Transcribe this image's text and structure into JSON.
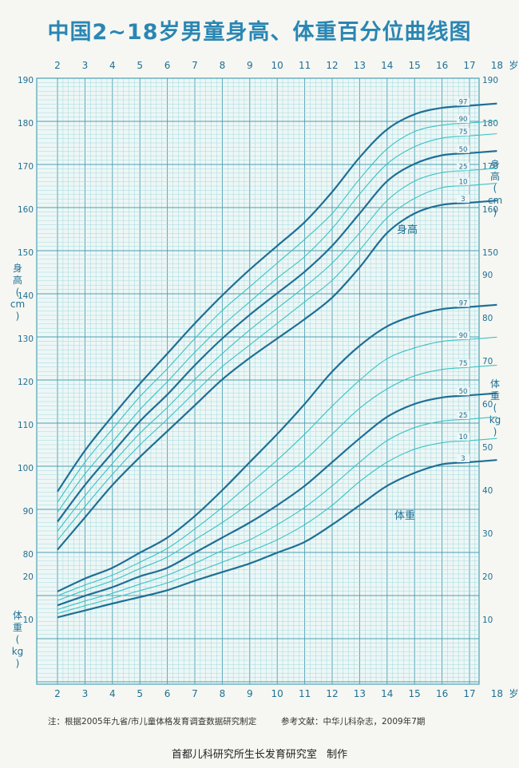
{
  "title": "中国2~18岁男童身高、体重百分位曲线图",
  "footnote_left": "注：根据2005年九省/市儿童体格发育调查数据研究制定",
  "footnote_right": "参考文献：中华儿科杂志，2009年7期",
  "credit_org": "首都儿科研究所生长发育研究室",
  "credit_action": "制作",
  "colors": {
    "background": "#f6f7f2",
    "grid_minor": "#9fd8de",
    "grid_major": "#4a9fb3",
    "curve_dark": "#1f6f95",
    "curve_light": "#3cc2c4",
    "text": "#1f6f95"
  },
  "chart_data": {
    "type": "line",
    "x_axis": {
      "ticks": [
        "2",
        "3",
        "4",
        "5",
        "6",
        "7",
        "8",
        "9",
        "10",
        "11",
        "12",
        "13",
        "14",
        "15",
        "16",
        "17",
        "18"
      ],
      "unit": "岁",
      "range": [
        2,
        18
      ]
    },
    "height_axis": {
      "label": [
        "身",
        "高",
        "(",
        "cm",
        ")"
      ],
      "ticks_left": [
        80,
        90,
        100,
        110,
        120,
        130,
        140,
        150,
        160,
        170,
        180,
        190
      ],
      "ticks_right": [
        150,
        160,
        170,
        180,
        190
      ],
      "range": [
        75,
        190
      ]
    },
    "weight_axis": {
      "label": [
        "体",
        "重",
        "(",
        "kg",
        ")"
      ],
      "ticks_left": [
        10,
        20
      ],
      "ticks_right": [
        10,
        20,
        30,
        40,
        50,
        60,
        70,
        80,
        90
      ],
      "range": [
        0,
        95
      ]
    },
    "height_series_label": "身高",
    "weight_series_label": "体重",
    "x": [
      2,
      3,
      4,
      5,
      6,
      7,
      8,
      9,
      10,
      11,
      12,
      13,
      14,
      15,
      16,
      17,
      18
    ],
    "height_series": [
      {
        "name": "97",
        "style": "dark",
        "values": [
          94.5,
          104.0,
          112.0,
          119.5,
          126.5,
          133.5,
          140.0,
          146.0,
          151.5,
          157.0,
          164.0,
          172.0,
          178.5,
          182.0,
          183.5,
          184.0,
          184.5
        ]
      },
      {
        "name": "90",
        "style": "light",
        "values": [
          92.0,
          101.3,
          109.0,
          116.5,
          123.0,
          130.0,
          136.5,
          142.0,
          147.5,
          153.0,
          159.0,
          167.0,
          174.0,
          178.0,
          179.5,
          180.0,
          180.5
        ]
      },
      {
        "name": "75",
        "style": "light",
        "values": [
          89.7,
          98.6,
          106.0,
          113.5,
          120.0,
          126.8,
          133.0,
          138.5,
          144.0,
          149.0,
          155.5,
          163.5,
          170.5,
          174.5,
          176.5,
          177.0,
          177.5
        ]
      },
      {
        "name": "50",
        "style": "dark",
        "values": [
          87.5,
          96.0,
          103.5,
          110.8,
          117.0,
          123.8,
          130.0,
          135.5,
          140.5,
          145.5,
          151.5,
          159.0,
          166.5,
          170.5,
          172.5,
          173.0,
          173.5
        ]
      },
      {
        "name": "25",
        "style": "light",
        "values": [
          85.3,
          93.5,
          101.0,
          108.0,
          114.0,
          120.5,
          126.5,
          132.0,
          137.0,
          142.0,
          147.5,
          154.5,
          162.0,
          166.5,
          168.5,
          169.0,
          169.5
        ]
      },
      {
        "name": "10",
        "style": "light",
        "values": [
          83.2,
          91.0,
          98.5,
          105.3,
          111.3,
          117.5,
          123.5,
          128.5,
          133.5,
          138.5,
          143.5,
          150.5,
          158.0,
          162.5,
          165.0,
          165.5,
          166.0
        ]
      },
      {
        "name": "3",
        "style": "dark",
        "values": [
          81.0,
          88.5,
          96.0,
          102.5,
          108.5,
          114.5,
          120.5,
          125.5,
          130.0,
          134.5,
          139.5,
          146.5,
          154.5,
          159.0,
          161.0,
          161.5,
          162.0
        ]
      }
    ],
    "weight_series": [
      {
        "name": "97",
        "style": "dark",
        "values": [
          16.5,
          19.5,
          22.0,
          25.5,
          29.0,
          34.0,
          40.0,
          46.5,
          53.0,
          60.0,
          67.5,
          73.5,
          78.0,
          80.5,
          82.0,
          82.5,
          83.0
        ]
      },
      {
        "name": "90",
        "style": "light",
        "values": [
          15.5,
          18.0,
          20.3,
          23.3,
          26.5,
          31.0,
          36.0,
          41.5,
          47.0,
          53.0,
          59.5,
          65.5,
          70.5,
          73.0,
          74.5,
          75.0,
          75.5
        ]
      },
      {
        "name": "75",
        "style": "light",
        "values": [
          14.4,
          16.8,
          19.0,
          21.8,
          24.5,
          28.5,
          32.5,
          37.0,
          42.0,
          47.0,
          53.0,
          59.0,
          63.5,
          66.5,
          68.0,
          68.5,
          69.0
        ]
      },
      {
        "name": "50",
        "style": "dark",
        "values": [
          13.3,
          15.5,
          17.5,
          20.0,
          22.0,
          25.5,
          29.0,
          32.5,
          36.5,
          41.0,
          46.5,
          52.0,
          57.0,
          60.0,
          61.5,
          62.0,
          62.5
        ]
      },
      {
        "name": "25",
        "style": "light",
        "values": [
          12.3,
          14.3,
          16.1,
          18.2,
          20.3,
          23.0,
          26.0,
          28.5,
          32.0,
          36.0,
          41.0,
          46.5,
          51.5,
          54.5,
          56.0,
          56.5,
          57.0
        ]
      },
      {
        "name": "10",
        "style": "light",
        "values": [
          11.4,
          13.2,
          14.9,
          16.7,
          18.5,
          20.9,
          23.3,
          25.8,
          28.5,
          32.0,
          36.5,
          42.0,
          46.5,
          49.5,
          51.0,
          51.5,
          52.0
        ]
      },
      {
        "name": "3",
        "style": "dark",
        "values": [
          10.5,
          12.1,
          13.7,
          15.2,
          16.8,
          19.0,
          21.0,
          23.0,
          25.5,
          28.0,
          32.0,
          36.5,
          41.0,
          44.0,
          46.0,
          46.5,
          47.0
        ]
      }
    ]
  }
}
